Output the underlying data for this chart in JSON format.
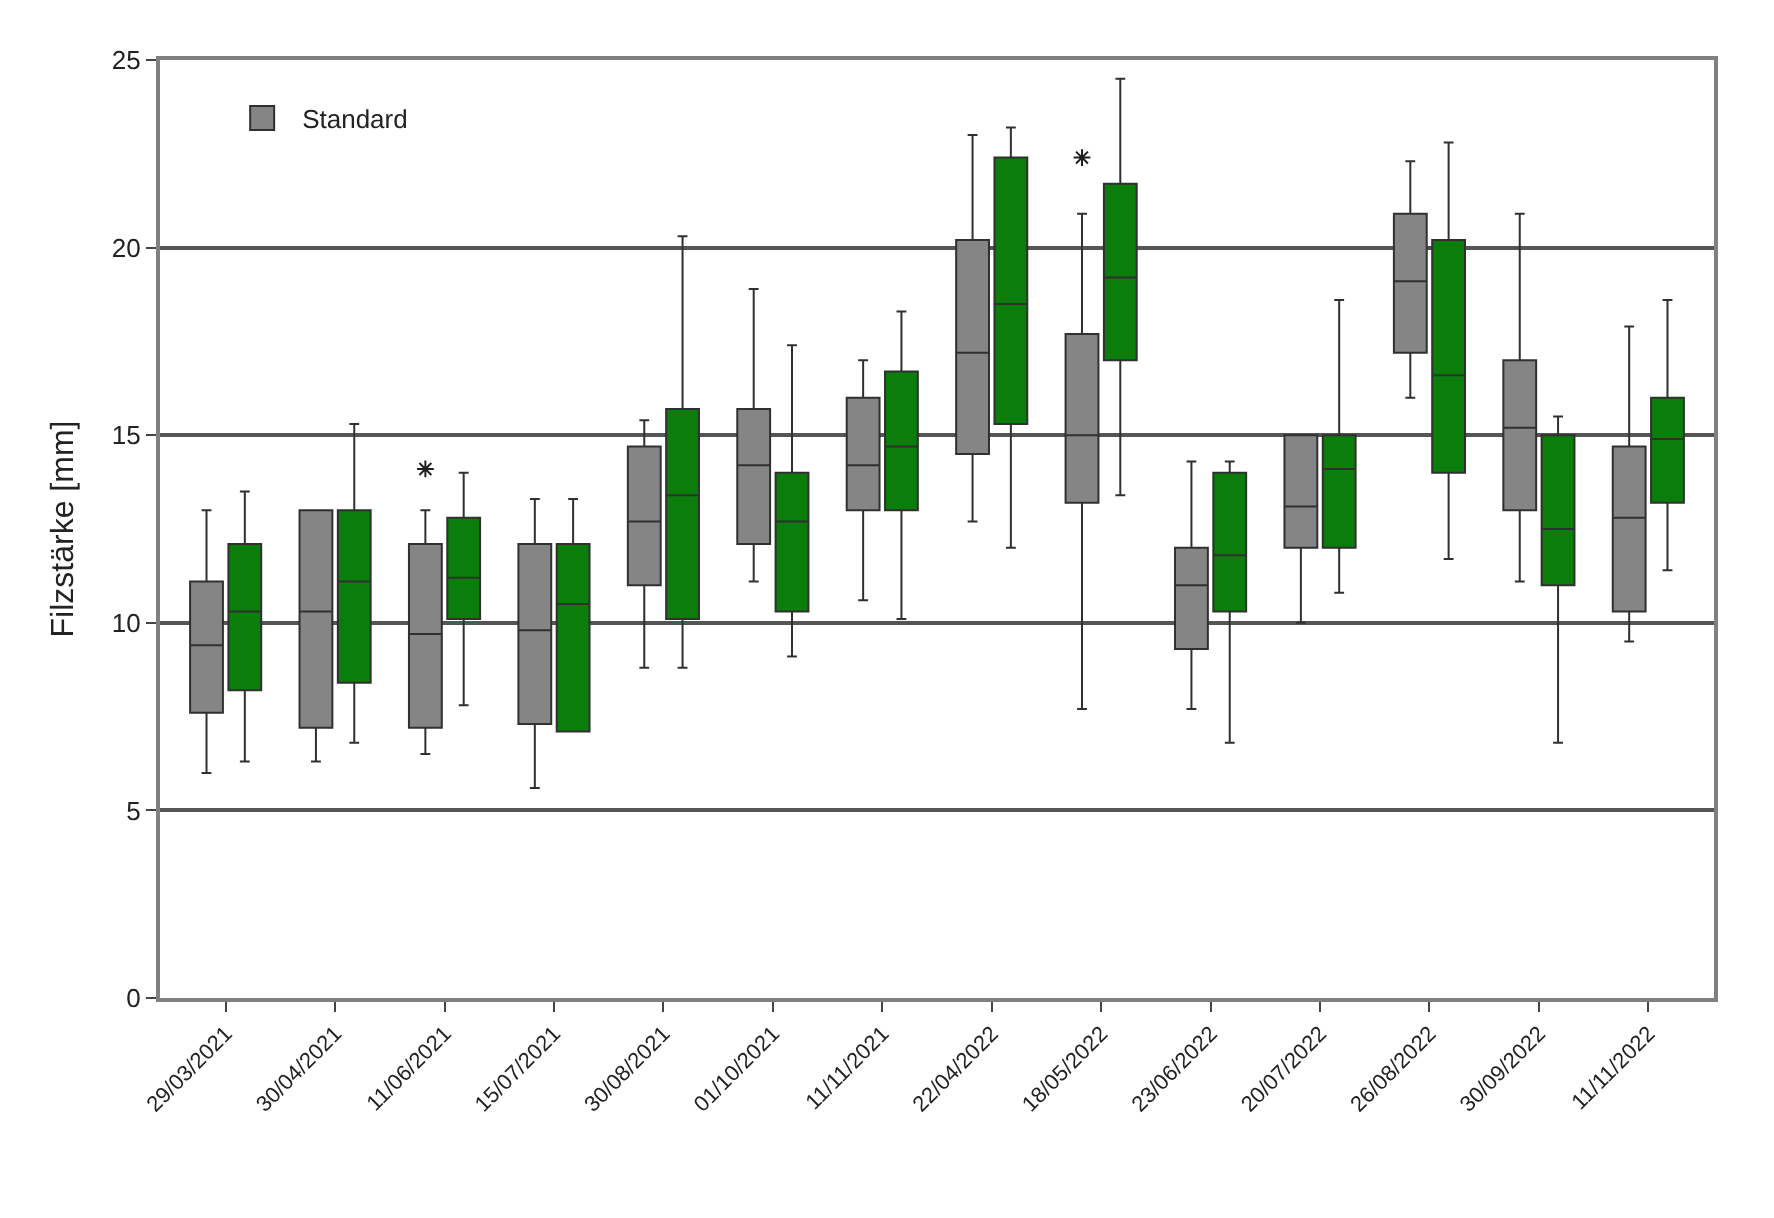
{
  "chart_data": {
    "type": "box",
    "ylabel": "Filzstärke [mm]",
    "categories": [
      "29/03/2021",
      "30/04/2021",
      "11/06/2021",
      "15/07/2021",
      "30/08/2021",
      "01/10/2021",
      "11/11/2021",
      "22/04/2022",
      "18/05/2022",
      "23/06/2022",
      "20/07/2022",
      "26/08/2022",
      "30/09/2022",
      "11/11/2022"
    ],
    "ylim": [
      0,
      25
    ],
    "yticks": [
      0,
      5,
      10,
      15,
      20,
      25
    ],
    "grid": "y",
    "legend": "top left",
    "series": [
      {
        "name": "Standard",
        "color": "#858585",
        "boxes": [
          {
            "low": 6.0,
            "q1": 7.6,
            "median": 9.4,
            "q3": 11.1,
            "high": 13.0
          },
          {
            "low": 6.3,
            "q1": 7.2,
            "median": 10.3,
            "q3": 13.0,
            "high": 13.0
          },
          {
            "low": 6.5,
            "q1": 7.2,
            "median": 9.7,
            "q3": 12.1,
            "high": 13.0,
            "outliers": [
              14.1
            ]
          },
          {
            "low": 5.6,
            "q1": 7.3,
            "median": 9.8,
            "q3": 12.1,
            "high": 13.3
          },
          {
            "low": 8.8,
            "q1": 11.0,
            "median": 12.7,
            "q3": 14.7,
            "high": 15.4
          },
          {
            "low": 11.1,
            "q1": 12.1,
            "median": 14.2,
            "q3": 15.7,
            "high": 18.9
          },
          {
            "low": 10.6,
            "q1": 13.0,
            "median": 14.2,
            "q3": 16.0,
            "high": 17.0
          },
          {
            "low": 12.7,
            "q1": 14.5,
            "median": 17.2,
            "q3": 20.2,
            "high": 23.0
          },
          {
            "low": 7.7,
            "q1": 13.2,
            "median": 15.0,
            "q3": 17.7,
            "high": 20.9,
            "outliers": [
              22.4
            ]
          },
          {
            "low": 7.7,
            "q1": 9.3,
            "median": 11.0,
            "q3": 12.0,
            "high": 14.3
          },
          {
            "low": 10.0,
            "q1": 12.0,
            "median": 13.1,
            "q3": 15.0,
            "high": 15.0
          },
          {
            "low": 16.0,
            "q1": 17.2,
            "median": 19.1,
            "q3": 20.9,
            "high": 22.3
          },
          {
            "low": 11.1,
            "q1": 13.0,
            "median": 15.2,
            "q3": 17.0,
            "high": 20.9
          },
          {
            "low": 9.5,
            "q1": 10.3,
            "median": 12.8,
            "q3": 14.7,
            "high": 17.9
          }
        ]
      },
      {
        "color": "#0a7d0a",
        "boxes": [
          {
            "low": 6.3,
            "q1": 8.2,
            "median": 10.3,
            "q3": 12.1,
            "high": 13.5
          },
          {
            "low": 6.8,
            "q1": 8.4,
            "median": 11.1,
            "q3": 13.0,
            "high": 15.3
          },
          {
            "low": 7.8,
            "q1": 10.1,
            "median": 11.2,
            "q3": 12.8,
            "high": 14.0
          },
          {
            "low": 7.1,
            "q1": 7.1,
            "median": 10.5,
            "q3": 12.1,
            "high": 13.3
          },
          {
            "low": 8.8,
            "q1": 10.1,
            "median": 13.4,
            "q3": 15.7,
            "high": 20.3
          },
          {
            "low": 9.1,
            "q1": 10.3,
            "median": 12.7,
            "q3": 14.0,
            "high": 17.4
          },
          {
            "low": 10.1,
            "q1": 13.0,
            "median": 14.7,
            "q3": 16.7,
            "high": 18.3
          },
          {
            "low": 12.0,
            "q1": 15.3,
            "median": 18.5,
            "q3": 22.4,
            "high": 23.2
          },
          {
            "low": 13.4,
            "q1": 17.0,
            "median": 19.2,
            "q3": 21.7,
            "high": 24.5
          },
          {
            "low": 6.8,
            "q1": 10.3,
            "median": 11.8,
            "q3": 14.0,
            "high": 14.3
          },
          {
            "low": 10.8,
            "q1": 12.0,
            "median": 14.1,
            "q3": 15.0,
            "high": 18.6
          },
          {
            "low": 11.7,
            "q1": 14.0,
            "median": 16.6,
            "q3": 20.2,
            "high": 22.8
          },
          {
            "low": 6.8,
            "q1": 11.0,
            "median": 12.5,
            "q3": 15.0,
            "high": 15.5
          },
          {
            "low": 11.4,
            "q1": 13.2,
            "median": 14.9,
            "q3": 16.0,
            "high": 18.6
          }
        ]
      }
    ]
  }
}
